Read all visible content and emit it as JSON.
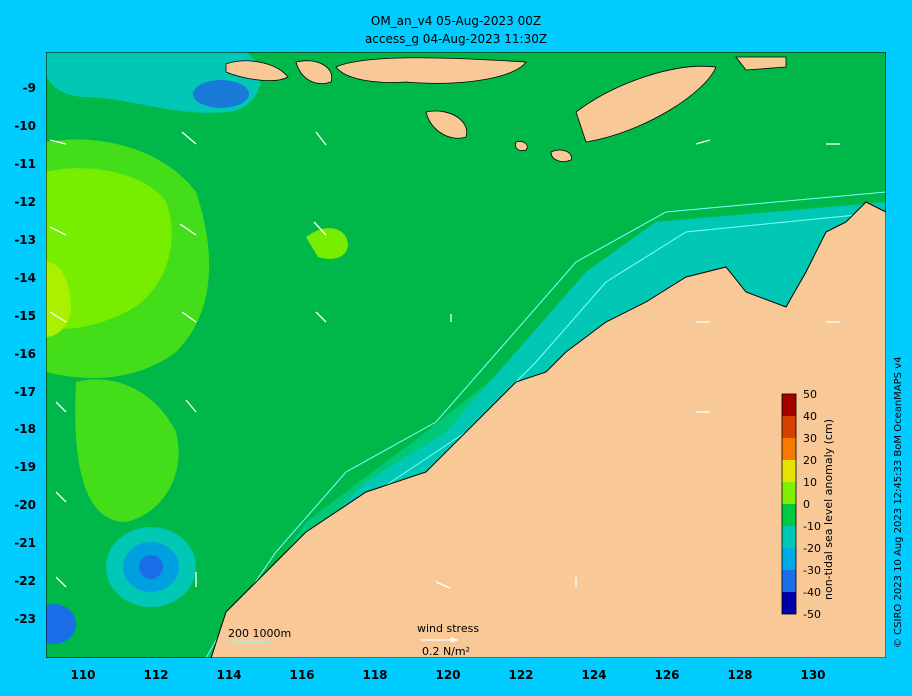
{
  "title_line1": "OM_an_v4  05-Aug-2023 00Z",
  "title_line2": "access_g 04-Aug-2023 11:30Z",
  "lat_ticks": [
    "-9",
    "-10",
    "-11",
    "-12",
    "-13",
    "-14",
    "-15",
    "-16",
    "-17",
    "-18",
    "-19",
    "-20",
    "-21",
    "-22",
    "-23"
  ],
  "lon_ticks": [
    "110",
    "112",
    "114",
    "116",
    "118",
    "120",
    "122",
    "124",
    "126",
    "128",
    "130"
  ],
  "colorbar": {
    "title": "non-tidal sea level anomaly (cm)",
    "ticks": [
      "50",
      "40",
      "30",
      "20",
      "10",
      "0",
      "-10",
      "-20",
      "-30",
      "-40",
      "-50"
    ]
  },
  "bathy_legend": "200  1000m",
  "wind_legend": {
    "label": "wind stress",
    "scale": "0.2 N/m²"
  },
  "credit": "© CSIRO 2023   10 Aug 2023 12:45:33 BoM OceanMAPS v4",
  "colors": {
    "land": "#f8c896",
    "background": "#00ccff",
    "contour": "#7fffff"
  }
}
